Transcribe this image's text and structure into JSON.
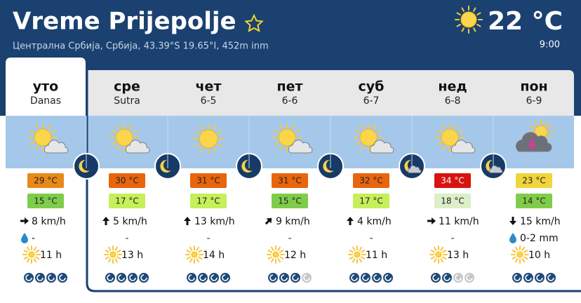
{
  "header": {
    "title": "Vreme Prijepolje",
    "location": "Централна Србија, Србија, 43.39°S 19.65°I, 452m inm",
    "temperature": "22 °C",
    "time": "9:00"
  },
  "days": [
    {
      "name": "уто",
      "date": "Danas",
      "sky": "partly-cloudy",
      "night": "clear",
      "max": "29 °C",
      "max_color": "#e8891a",
      "min": "15 °C",
      "min_color": "#7fcc4a",
      "wind": "8 km/h",
      "wind_dir": 90,
      "precip": "-",
      "rain_icon": true,
      "sun": "11 h",
      "uv": 4
    },
    {
      "name": "сре",
      "date": "Sutra",
      "sky": "partly-cloudy",
      "night": "clear",
      "max": "30 °C",
      "max_color": "#e8650e",
      "min": "17 °C",
      "min_color": "#c6ef5a",
      "wind": "5 km/h",
      "wind_dir": 0,
      "precip": "-",
      "rain_icon": false,
      "sun": "13 h",
      "uv": 4
    },
    {
      "name": "чет",
      "date": "6-5",
      "sky": "sunny",
      "night": "clear",
      "max": "31 °C",
      "max_color": "#e8650e",
      "min": "17 °C",
      "min_color": "#c6ef5a",
      "wind": "13 km/h",
      "wind_dir": 0,
      "precip": "-",
      "rain_icon": false,
      "sun": "14 h",
      "uv": 4
    },
    {
      "name": "пет",
      "date": "6-6",
      "sky": "partly-cloudy",
      "night": "clear",
      "max": "31 °C",
      "max_color": "#e8650e",
      "min": "15 °C",
      "min_color": "#7fcc4a",
      "wind": "9 km/h",
      "wind_dir": 45,
      "precip": "-",
      "rain_icon": false,
      "sun": "12 h",
      "uv": 3
    },
    {
      "name": "суб",
      "date": "6-7",
      "sky": "partly-cloudy",
      "night": "cloudy",
      "max": "32 °C",
      "max_color": "#e8650e",
      "min": "17 °C",
      "min_color": "#c6ef5a",
      "wind": "4 km/h",
      "wind_dir": 0,
      "precip": "-",
      "rain_icon": false,
      "sun": "11 h",
      "uv": 4
    },
    {
      "name": "нед",
      "date": "6-8",
      "sky": "partly-cloudy",
      "night": "cloudy",
      "max": "34 °C",
      "max_color": "#d8140f",
      "min": "18 °C",
      "min_color": "#dcefc6",
      "wind": "11 km/h",
      "wind_dir": 90,
      "precip": "-",
      "rain_icon": false,
      "sun": "13 h",
      "uv": 2
    },
    {
      "name": "пон",
      "date": "6-9",
      "sky": "storm",
      "night": null,
      "max": "23 °C",
      "max_color": "#f0d43c",
      "min": "14 °C",
      "min_color": "#7fcc4a",
      "wind": "15 km/h",
      "wind_dir": 180,
      "precip": "0-2 mm",
      "rain_icon": true,
      "sun": "10 h",
      "uv": 4
    }
  ]
}
